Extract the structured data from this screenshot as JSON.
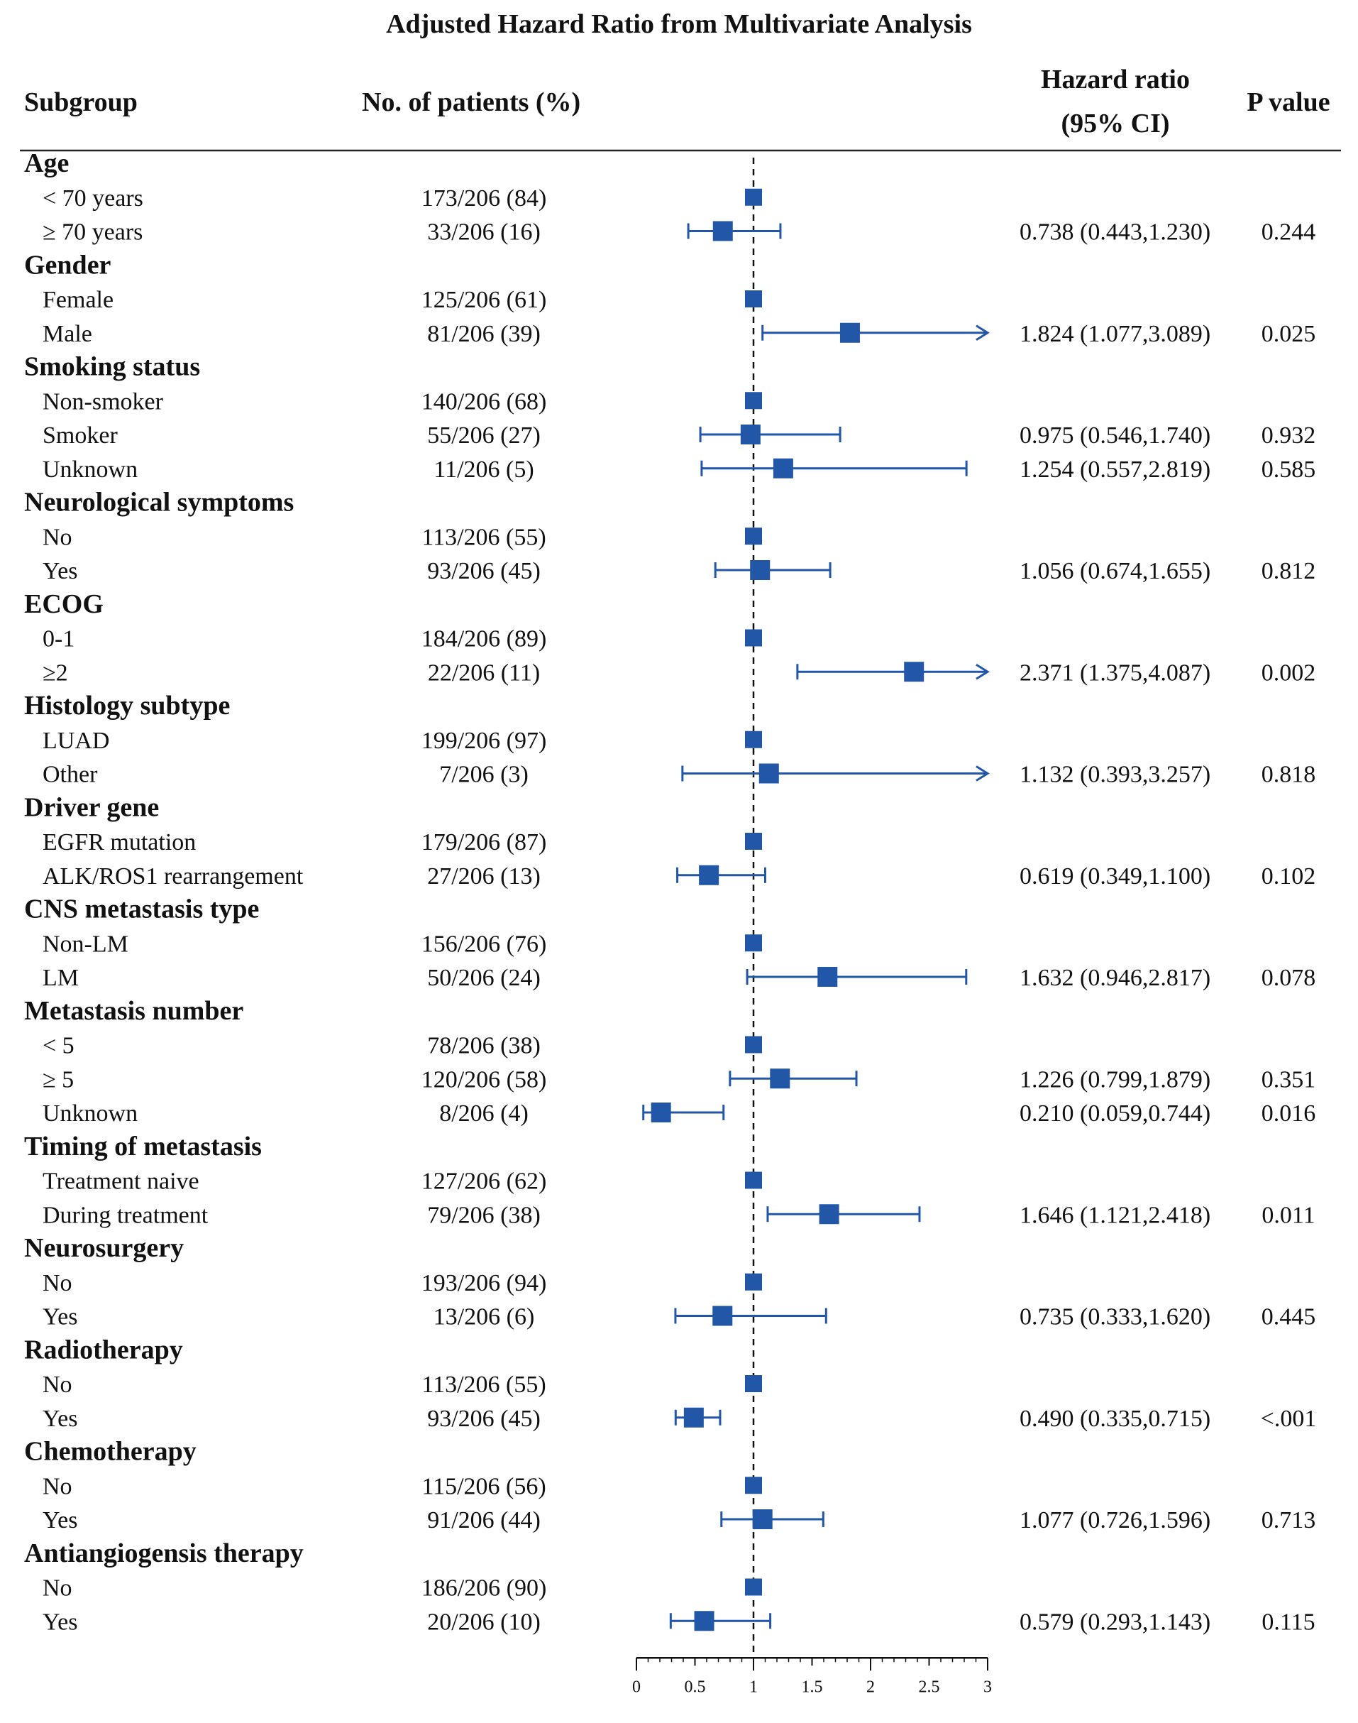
{
  "chart_data": {
    "type": "forest",
    "title": "Adjusted Hazard Ratio from Multivariate Analysis",
    "headers": {
      "subgroup": "Subgroup",
      "patients": "No. of patients (%)",
      "hr_line1": "Hazard ratio",
      "hr_line2": "(95% CI)",
      "pvalue": "P value"
    },
    "x_axis": {
      "min": 0,
      "max": 3,
      "ticks": [
        "0",
        "0.5",
        "1",
        "1.5",
        "2",
        "2.5",
        "3"
      ],
      "reference_line": 1
    },
    "colors": {
      "marker": "#2257a8",
      "text": "#111111"
    },
    "rows": [
      {
        "kind": "group",
        "label": "Age"
      },
      {
        "kind": "item",
        "label": "< 70 years",
        "patients": "173/206 (84)",
        "ref": true
      },
      {
        "kind": "item",
        "label": "≥ 70 years",
        "patients": "33/206 (16)",
        "hr": 0.738,
        "lo": 0.443,
        "hi": 1.23,
        "ci_text": "0.738 (0.443,1.230)",
        "p": "0.244"
      },
      {
        "kind": "group",
        "label": "Gender"
      },
      {
        "kind": "item",
        "label": "Female",
        "patients": "125/206 (61)",
        "ref": true
      },
      {
        "kind": "item",
        "label": "Male",
        "patients": "81/206 (39)",
        "hr": 1.824,
        "lo": 1.077,
        "hi": 3.089,
        "ci_text": "1.824 (1.077,3.089)",
        "p": "0.025"
      },
      {
        "kind": "group",
        "label": "Smoking status"
      },
      {
        "kind": "item",
        "label": "Non-smoker",
        "patients": "140/206 (68)",
        "ref": true
      },
      {
        "kind": "item",
        "label": "Smoker",
        "patients": "55/206 (27)",
        "hr": 0.975,
        "lo": 0.546,
        "hi": 1.74,
        "ci_text": "0.975 (0.546,1.740)",
        "p": "0.932"
      },
      {
        "kind": "item",
        "label": "Unknown",
        "patients": "11/206 (5)",
        "hr": 1.254,
        "lo": 0.557,
        "hi": 2.819,
        "ci_text": "1.254 (0.557,2.819)",
        "p": "0.585"
      },
      {
        "kind": "group",
        "label": "Neurological symptoms"
      },
      {
        "kind": "item",
        "label": "No",
        "patients": "113/206 (55)",
        "ref": true
      },
      {
        "kind": "item",
        "label": "Yes",
        "patients": "93/206 (45)",
        "hr": 1.056,
        "lo": 0.674,
        "hi": 1.655,
        "ci_text": "1.056 (0.674,1.655)",
        "p": "0.812"
      },
      {
        "kind": "group",
        "label": "ECOG"
      },
      {
        "kind": "item",
        "label": "0-1",
        "patients": "184/206 (89)",
        "ref": true
      },
      {
        "kind": "item",
        "label": "≥2",
        "patients": "22/206 (11)",
        "hr": 2.371,
        "lo": 1.375,
        "hi": 4.087,
        "ci_text": "2.371 (1.375,4.087)",
        "p": "0.002"
      },
      {
        "kind": "group",
        "label": "Histology subtype"
      },
      {
        "kind": "item",
        "label": "LUAD",
        "patients": "199/206 (97)",
        "ref": true
      },
      {
        "kind": "item",
        "label": "Other",
        "patients": "7/206 (3)",
        "hr": 1.132,
        "lo": 0.393,
        "hi": 3.257,
        "ci_text": "1.132 (0.393,3.257)",
        "p": "0.818"
      },
      {
        "kind": "group",
        "label": "Driver gene"
      },
      {
        "kind": "item",
        "label": "EGFR mutation",
        "patients": "179/206 (87)",
        "ref": true
      },
      {
        "kind": "item",
        "label": "ALK/ROS1 rearrangement",
        "patients": "27/206 (13)",
        "hr": 0.619,
        "lo": 0.349,
        "hi": 1.1,
        "ci_text": "0.619 (0.349,1.100)",
        "p": "0.102"
      },
      {
        "kind": "group",
        "label": "CNS metastasis type"
      },
      {
        "kind": "item",
        "label": "Non-LM",
        "patients": "156/206 (76)",
        "ref": true
      },
      {
        "kind": "item",
        "label": "LM",
        "patients": "50/206 (24)",
        "hr": 1.632,
        "lo": 0.946,
        "hi": 2.817,
        "ci_text": "1.632 (0.946,2.817)",
        "p": "0.078"
      },
      {
        "kind": "group",
        "label": "Metastasis number"
      },
      {
        "kind": "item",
        "label": "< 5",
        "patients": "78/206 (38)",
        "ref": true
      },
      {
        "kind": "item",
        "label": "≥ 5",
        "patients": "120/206 (58)",
        "hr": 1.226,
        "lo": 0.799,
        "hi": 1.879,
        "ci_text": "1.226 (0.799,1.879)",
        "p": "0.351"
      },
      {
        "kind": "item",
        "label": "Unknown",
        "patients": "8/206 (4)",
        "hr": 0.21,
        "lo": 0.059,
        "hi": 0.744,
        "ci_text": "0.210 (0.059,0.744)",
        "p": "0.016"
      },
      {
        "kind": "group",
        "label": "Timing of metastasis"
      },
      {
        "kind": "item",
        "label": "Treatment naive",
        "patients": "127/206 (62)",
        "ref": true
      },
      {
        "kind": "item",
        "label": "During treatment",
        "patients": "79/206 (38)",
        "hr": 1.646,
        "lo": 1.121,
        "hi": 2.418,
        "ci_text": "1.646 (1.121,2.418)",
        "p": "0.011"
      },
      {
        "kind": "group",
        "label": "Neurosurgery"
      },
      {
        "kind": "item",
        "label": "No",
        "patients": "193/206 (94)",
        "ref": true
      },
      {
        "kind": "item",
        "label": "Yes",
        "patients": "13/206 (6)",
        "hr": 0.735,
        "lo": 0.333,
        "hi": 1.62,
        "ci_text": "0.735 (0.333,1.620)",
        "p": "0.445"
      },
      {
        "kind": "group",
        "label": "Radiotherapy"
      },
      {
        "kind": "item",
        "label": "No",
        "patients": "113/206 (55)",
        "ref": true
      },
      {
        "kind": "item",
        "label": "Yes",
        "patients": "93/206 (45)",
        "hr": 0.49,
        "lo": 0.335,
        "hi": 0.715,
        "ci_text": "0.490 (0.335,0.715)",
        "p": "<.001"
      },
      {
        "kind": "group",
        "label": "Chemotherapy"
      },
      {
        "kind": "item",
        "label": "No",
        "patients": "115/206 (56)",
        "ref": true
      },
      {
        "kind": "item",
        "label": "Yes",
        "patients": "91/206 (44)",
        "hr": 1.077,
        "lo": 0.726,
        "hi": 1.596,
        "ci_text": "1.077 (0.726,1.596)",
        "p": "0.713"
      },
      {
        "kind": "group",
        "label": "Antiangiogensis therapy"
      },
      {
        "kind": "item",
        "label": "No",
        "patients": "186/206 (90)",
        "ref": true
      },
      {
        "kind": "item",
        "label": "Yes",
        "patients": "20/206 (10)",
        "hr": 0.579,
        "lo": 0.293,
        "hi": 1.143,
        "ci_text": "0.579 (0.293,1.143)",
        "p": "0.115"
      }
    ]
  }
}
